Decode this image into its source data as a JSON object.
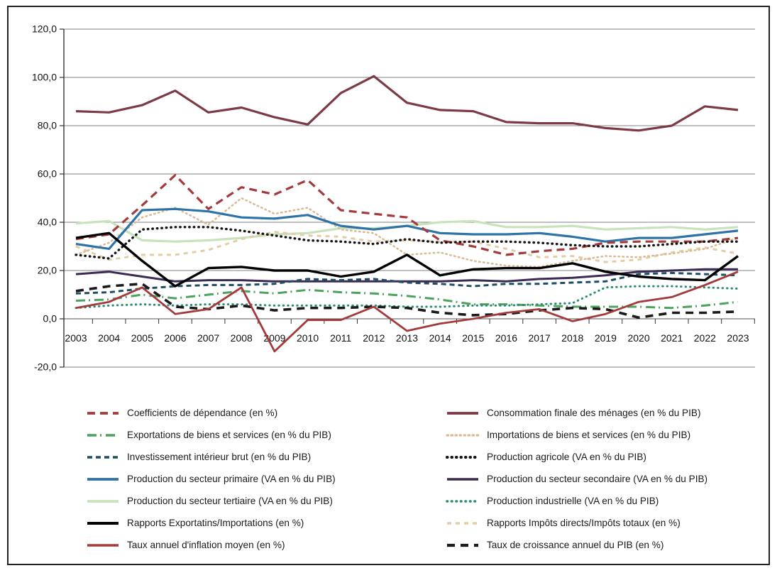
{
  "page": {
    "background": "#ffffff",
    "frame_color": "#222222"
  },
  "chart_data": {
    "type": "line",
    "x": [
      "2003",
      "2004",
      "2005",
      "2006",
      "2007",
      "2008",
      "2009",
      "2010",
      "2011",
      "2012",
      "2013",
      "2014",
      "2015",
      "2016",
      "2017",
      "2018",
      "2019",
      "2020",
      "2021",
      "2022",
      "2023"
    ],
    "ylim": [
      -20,
      120
    ],
    "ytick_step": 20,
    "ytick_labels": [
      "120,0",
      "100,0",
      "80,0",
      "60,0",
      "40,0",
      "20,0",
      "0,0",
      "-20,0"
    ],
    "grid": true,
    "grid_color": "#808080",
    "axis_color": "#333333",
    "legend_position": "bottom, two columns",
    "title": "",
    "xlabel": "",
    "ylabel": "",
    "series": [
      {
        "id": "tertiaire",
        "name": "Production du secteur tertiaire (VA en % du PIB)",
        "color": "#c8e3bc",
        "dash": "",
        "linecap": "butt",
        "width": 3.2,
        "values": [
          39.5,
          40.5,
          32.5,
          32,
          32.5,
          33.5,
          35,
          35.5,
          37.5,
          37.5,
          38.5,
          40,
          40.5,
          38,
          38,
          38.5,
          37,
          37.5,
          38,
          37,
          38
        ]
      },
      {
        "id": "impots",
        "name": "Rapports Impôts directs/Impôts totaux (en %)",
        "color": "#e3cda4",
        "dash": "6 6",
        "linecap": "butt",
        "width": 3,
        "values": [
          30,
          24.5,
          26.5,
          26.5,
          28.5,
          33,
          36,
          34.5,
          34,
          32,
          32.5,
          32,
          32,
          29,
          25.5,
          26,
          23.5,
          24.5,
          27.5,
          29.5,
          27
        ]
      },
      {
        "id": "importations",
        "name": "Importations de biens et services (en % du PIB)",
        "color": "#d9bc96",
        "dash": "1.5 4.5",
        "linecap": "round",
        "width": 2.6,
        "values": [
          26.5,
          31.5,
          42,
          46,
          39,
          50,
          43.5,
          46,
          37,
          35.5,
          26.5,
          27.5,
          24,
          22,
          21.5,
          24,
          26,
          25.5,
          27,
          29,
          33.5
        ]
      },
      {
        "id": "primaire",
        "name": "Production du secteur primaire (VA en % du PIB)",
        "color": "#2e73a8",
        "dash": "",
        "linecap": "butt",
        "width": 3.2,
        "values": [
          31,
          29,
          45,
          45.5,
          44.5,
          42,
          41.5,
          43,
          38.5,
          37,
          38.5,
          35.5,
          35,
          35,
          35.5,
          34,
          32,
          33.5,
          33.5,
          35,
          36.5
        ]
      },
      {
        "id": "consommation",
        "name": "Consommation finale des ménages (en % du PIB)",
        "color": "#7c3a44",
        "dash": "",
        "linecap": "butt",
        "width": 3.2,
        "values": [
          86,
          85.5,
          88.5,
          94.5,
          85.5,
          87.5,
          83.5,
          80.5,
          93.5,
          100.5,
          89.5,
          86.5,
          86,
          81.5,
          81,
          81,
          79,
          78,
          80,
          88,
          86.5
        ]
      },
      {
        "id": "coefficients",
        "name": "Coefficients de dépendance (en %)",
        "color": "#a33a3c",
        "dash": "11 7",
        "linecap": "butt",
        "width": 3.2,
        "values": [
          33,
          35,
          47,
          59.5,
          45.5,
          54.5,
          51.5,
          57.5,
          45,
          43.5,
          42,
          32.5,
          30,
          26.5,
          28,
          29,
          31.5,
          32,
          32,
          32,
          33.5
        ]
      },
      {
        "id": "agricole",
        "name": "Production agricole (VA en % du PIB)",
        "color": "#141414",
        "dash": "0.5 6",
        "linecap": "round",
        "width": 3.4,
        "values": [
          26.5,
          25,
          37,
          38,
          38,
          36.5,
          34.5,
          32.5,
          32,
          31,
          33,
          31.5,
          32,
          32,
          31.5,
          30.5,
          30,
          30,
          31,
          32,
          32
        ]
      },
      {
        "id": "secondaire",
        "name": "Production du secteur secondaire (VA en % du PIB)",
        "color": "#3b2a54",
        "dash": "",
        "linecap": "butt",
        "width": 3,
        "values": [
          18.5,
          19.5,
          17.5,
          15.5,
          16,
          16,
          15.5,
          15.5,
          15.5,
          15.5,
          15.5,
          15.5,
          16,
          15.5,
          16.5,
          17,
          18,
          19.5,
          20,
          20.5,
          20.5
        ]
      },
      {
        "id": "investissement",
        "name": "Investissement intérieur brut (en % du PIB)",
        "color": "#1d4e63",
        "dash": "7 5",
        "linecap": "butt",
        "width": 3,
        "values": [
          10.5,
          11,
          12.5,
          13.5,
          14,
          14,
          14.5,
          16.5,
          16,
          16.5,
          15,
          14.5,
          13.5,
          14.5,
          14.5,
          15,
          15.5,
          18.5,
          19,
          18.5,
          18
        ]
      },
      {
        "id": "exportations",
        "name": "Exportations de biens et services (en % du PIB)",
        "color": "#4da25c",
        "dash": "13 5 2 6",
        "linecap": "butt",
        "width": 3,
        "values": [
          7.5,
          8,
          10,
          8.5,
          10,
          11.5,
          10.5,
          12,
          11,
          10.5,
          9.5,
          8,
          6,
          6,
          5.5,
          5,
          5,
          5,
          4.5,
          5.5,
          7
        ]
      },
      {
        "id": "industrielle",
        "name": "Production industrielle (VA en % du PIB)",
        "color": "#2b8c74",
        "dash": "0.5 6",
        "linecap": "round",
        "width": 3,
        "values": [
          4.5,
          5.5,
          6,
          5.5,
          6,
          6,
          5.5,
          5.5,
          5.5,
          5.5,
          5,
          5,
          5.5,
          5.5,
          6,
          6.5,
          13,
          13.5,
          13.5,
          13,
          12.5
        ]
      },
      {
        "id": "croissance",
        "name": "Taux de croissance annuel du PIB (en %)",
        "color": "#1a1a1a",
        "dash": "11 8",
        "linecap": "butt",
        "width": 3.6,
        "values": [
          11.5,
          13.5,
          14.5,
          5,
          4,
          5.5,
          3.5,
          4.5,
          4.5,
          5,
          4.5,
          2.5,
          1.5,
          2,
          3.5,
          4.5,
          4,
          0.5,
          2.5,
          2.5,
          3
        ]
      },
      {
        "id": "rapports",
        "name": "Rapports Exportatins/Importations (en %)",
        "color": "#000000",
        "dash": "",
        "linecap": "butt",
        "width": 3.4,
        "values": [
          33.5,
          35.5,
          24,
          13.5,
          21,
          21.5,
          20,
          20,
          17.5,
          19.5,
          26.5,
          18,
          20.5,
          21,
          21,
          23,
          19.5,
          17.5,
          16.5,
          16,
          26
        ]
      },
      {
        "id": "inflation",
        "name": "Taux annuel d'inflation moyen (en %)",
        "color": "#a33a3c",
        "dash": "",
        "linecap": "butt",
        "width": 2.8,
        "values": [
          4.5,
          7,
          13,
          2,
          4,
          13,
          -13.5,
          -0.5,
          -0.5,
          5,
          -5,
          -2,
          0,
          2.5,
          4,
          -1,
          2,
          7,
          9,
          14,
          19.5
        ]
      }
    ],
    "legend_columns": {
      "left": [
        "coefficients",
        "exportations",
        "investissement",
        "primaire",
        "tertiaire",
        "rapports",
        "inflation"
      ],
      "right": [
        "consommation",
        "importations",
        "agricole",
        "secondaire",
        "industrielle",
        "impots",
        "croissance"
      ]
    }
  }
}
